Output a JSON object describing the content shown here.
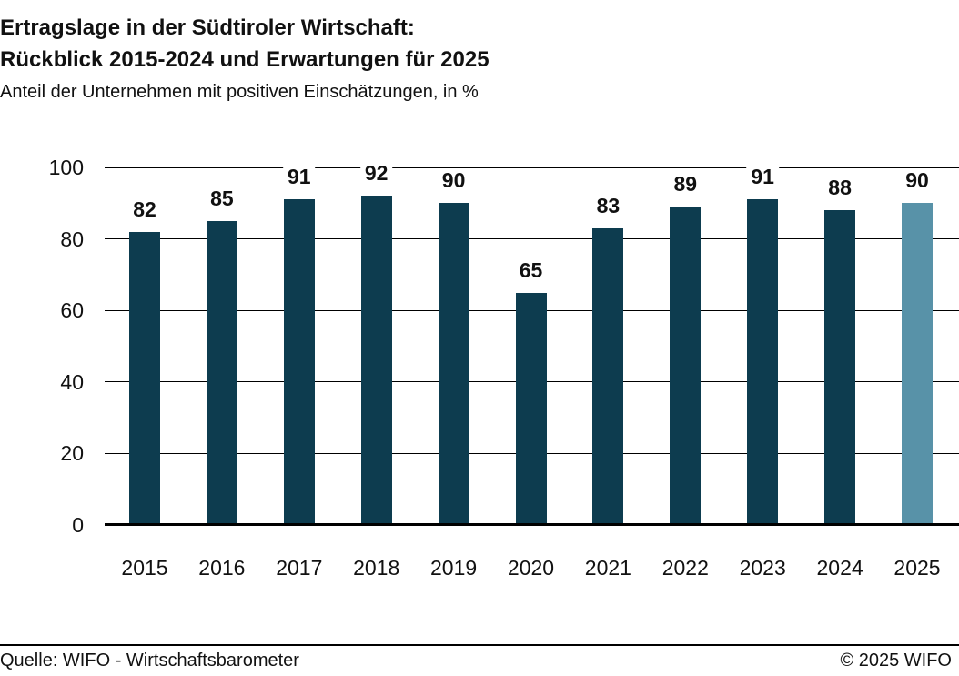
{
  "title": {
    "line1": "Ertragslage in der Südtiroler Wirtschaft:",
    "line2": "Rückblick 2015-2024 und Erwartungen für 2025"
  },
  "subtitle": "Anteil der Unternehmen mit positiven Einschätzungen, in %",
  "footer": {
    "source": "Quelle: WIFO - Wirtschaftsbarometer",
    "copyright": "© 2025 WIFO"
  },
  "colors": {
    "bar": "#0d3c4f",
    "bar_forecast": "#5892a8",
    "text": "#111111",
    "grid": "#000000"
  },
  "chart_data": {
    "type": "bar",
    "title": "Ertragslage in der Südtiroler Wirtschaft: Rückblick 2015-2024 und Erwartungen für 2025",
    "subtitle": "Anteil der Unternehmen mit positiven Einschätzungen, in %",
    "categories": [
      "2015",
      "2016",
      "2017",
      "2018",
      "2019",
      "2020",
      "2021",
      "2022",
      "2023",
      "2024",
      "2025"
    ],
    "values": [
      82,
      85,
      91,
      92,
      90,
      65,
      83,
      89,
      91,
      88,
      90
    ],
    "value_labels": [
      "82",
      "85",
      "91",
      "92",
      "90",
      "65",
      "83",
      "89",
      "91",
      "88",
      "90"
    ],
    "forecast_index": 10,
    "xlabel": "",
    "ylabel": "",
    "ylim": [
      0,
      100
    ],
    "yticks": [
      0,
      20,
      40,
      60,
      80,
      100
    ],
    "grid": true,
    "legend": false
  }
}
